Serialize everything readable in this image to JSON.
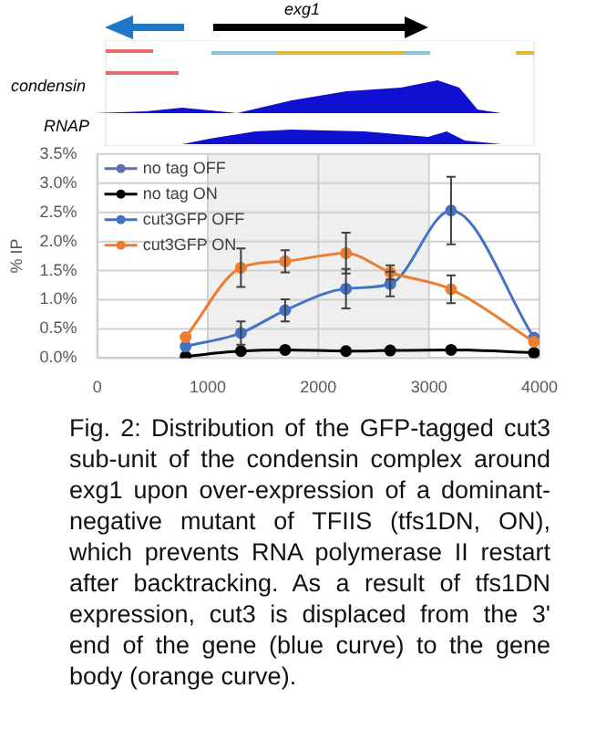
{
  "chart_data": {
    "type": "line",
    "ylabel": "% IP",
    "annotations": [
      "exg1",
      "condensin",
      "RNAP",
      "Fig. 2: Distribution of the GFP-tagged cut3 sub-unit of the condensin complex around exg1 upon over-expression of a dominant-negative mutant of TFIIS (tfs1DN, ON), which prevents RNA polymerase II restart after backtracking. As a result of tfs1DN expression,  cut3 is displaced from the 3' end of the gene (blue curve) to the gene body (orange curve)."
    ],
    "x": [
      800,
      1300,
      1700,
      2250,
      2650,
      3200,
      3950
    ],
    "series": [
      {
        "name": "no tag OFF",
        "color": "#5b6fa8",
        "values": [
          null,
          null,
          null,
          null,
          null,
          null,
          null
        ]
      },
      {
        "name": "no tag ON",
        "color": "#000000",
        "values": [
          0.03,
          0.12,
          0.14,
          0.12,
          0.13,
          0.14,
          0.09
        ]
      },
      {
        "name": "cut3GFP OFF",
        "color": "#4472c4",
        "values": [
          0.2,
          0.43,
          0.82,
          1.19,
          1.27,
          2.53,
          0.35
        ],
        "errors": [
          null,
          0.2,
          0.19,
          0.34,
          0.21,
          0.58,
          null
        ]
      },
      {
        "name": "cut3GFP ON",
        "color": "#ed7d31",
        "values": [
          0.36,
          1.55,
          1.66,
          1.8,
          1.47,
          1.18,
          0.28
        ],
        "errors": [
          null,
          0.33,
          0.19,
          0.35,
          0.12,
          0.24,
          null
        ]
      }
    ],
    "xlim": [
      0,
      4000
    ],
    "xticks": [
      0,
      1000,
      2000,
      3000,
      4000
    ],
    "ylim": [
      0,
      3.5
    ],
    "yticks": [
      {
        "value": 0,
        "label": "0.0%"
      },
      {
        "value": 0.5,
        "label": "0.5%"
      },
      {
        "value": 1,
        "label": "1.0%"
      },
      {
        "value": 1.5,
        "label": "1.5%"
      },
      {
        "value": 2,
        "label": "2.0%"
      },
      {
        "value": 2.5,
        "label": "2.5%"
      },
      {
        "value": 3,
        "label": "3.0%"
      },
      {
        "value": 3.5,
        "label": "3.5%"
      }
    ],
    "bands": [
      {
        "axis": "x",
        "from": 1000,
        "to": 3000,
        "color": "#efefef"
      }
    ],
    "grid": true,
    "legend": "top left",
    "marker": "circle",
    "line_style": "solid"
  }
}
